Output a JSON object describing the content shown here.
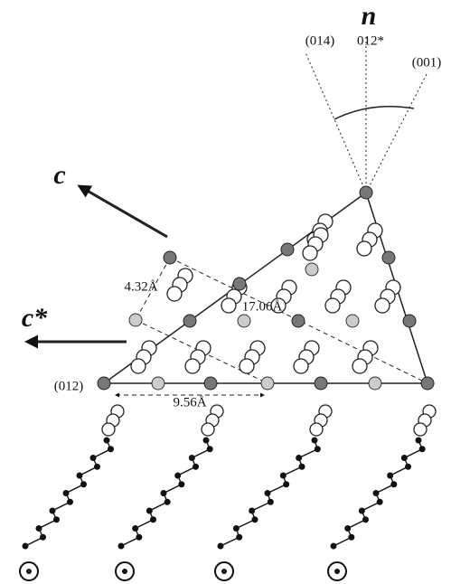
{
  "labels": {
    "normal": "n",
    "plane_014": "(014)",
    "plane_012_star": "012*",
    "plane_001": "(001)",
    "axis_c": "c",
    "axis_c_star": "c*",
    "spacing_a": "4.32Å",
    "spacing_b": "17.06Å",
    "plane_012": "(012)",
    "spacing_c": "9.56Å"
  }
}
